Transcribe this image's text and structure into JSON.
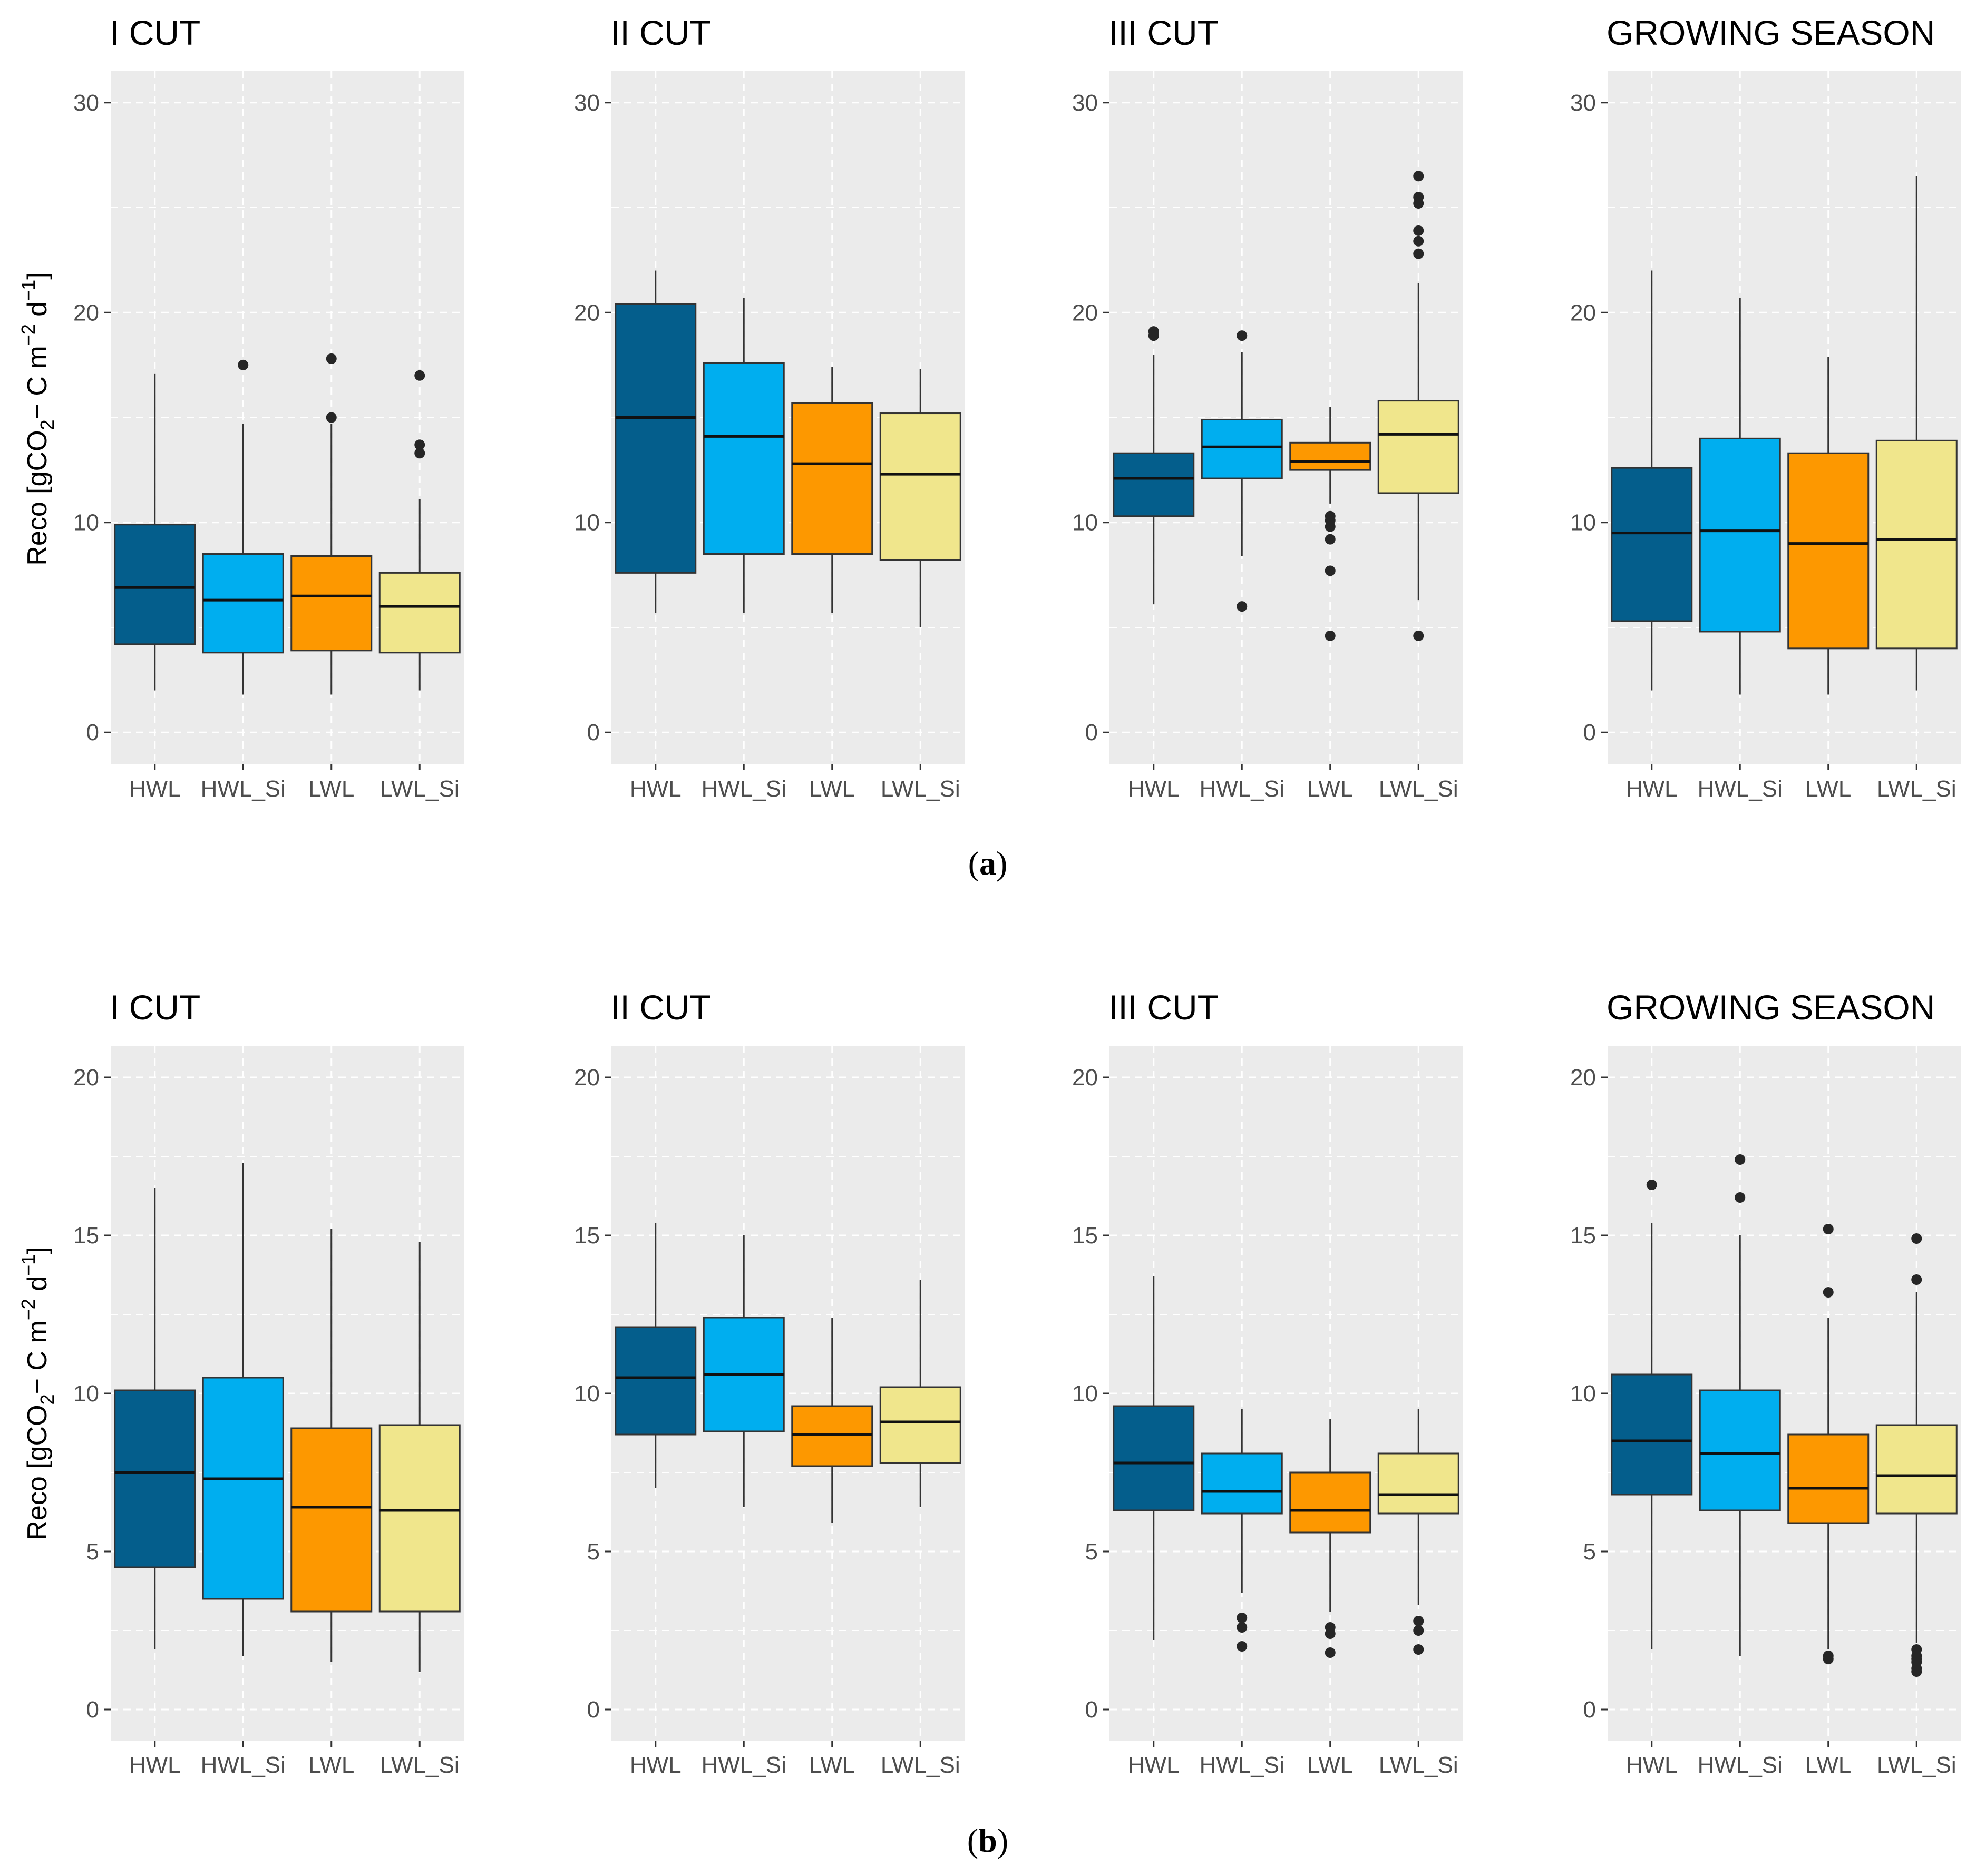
{
  "colors": {
    "HWL": "#045e8c",
    "HWL_Si": "#00aeef",
    "LWL": "#fd9800",
    "LWL_Si": "#f0e68c",
    "panel_bg": "#ebebeb",
    "grid": "#ffffff",
    "outlier": "#262626"
  },
  "y_axis_title": {
    "prefix": "Reco [gCO",
    "sub": "2",
    "mid1": "− C m",
    "sup1": "−2",
    "mid2": " d",
    "sup2": "−1",
    "suffix": "]"
  },
  "chart_data": [
    {
      "type": "boxplot",
      "subfigure": "(a)",
      "sub_label": {
        "open": "(",
        "letter": "a",
        "close": ")"
      },
      "ylim": [
        -1.5,
        31.5
      ],
      "yticks": [
        0,
        10,
        20,
        30
      ],
      "ygrid_minor": [
        5,
        15,
        25
      ],
      "categories": [
        "HWL",
        "HWL_Si",
        "LWL",
        "LWL_Si"
      ],
      "panels": [
        {
          "title": "I CUT",
          "boxes": [
            {
              "group": "HWL",
              "whisker_low": 2.0,
              "q1": 4.2,
              "median": 6.9,
              "q3": 9.9,
              "whisker_high": 17.1,
              "outliers": []
            },
            {
              "group": "HWL_Si",
              "whisker_low": 1.8,
              "q1": 3.8,
              "median": 6.3,
              "q3": 8.5,
              "whisker_high": 14.7,
              "outliers": [
                17.5
              ]
            },
            {
              "group": "LWL",
              "whisker_low": 1.8,
              "q1": 3.9,
              "median": 6.5,
              "q3": 8.4,
              "whisker_high": 14.7,
              "outliers": [
                15.0,
                17.8
              ]
            },
            {
              "group": "LWL_Si",
              "whisker_low": 2.0,
              "q1": 3.8,
              "median": 6.0,
              "q3": 7.6,
              "whisker_high": 11.1,
              "outliers": [
                13.3,
                13.7,
                17.0
              ]
            }
          ]
        },
        {
          "title": "II CUT",
          "boxes": [
            {
              "group": "HWL",
              "whisker_low": 5.7,
              "q1": 7.6,
              "median": 15.0,
              "q3": 20.4,
              "whisker_high": 22.0,
              "outliers": []
            },
            {
              "group": "HWL_Si",
              "whisker_low": 5.7,
              "q1": 8.5,
              "median": 14.1,
              "q3": 17.6,
              "whisker_high": 20.7,
              "outliers": []
            },
            {
              "group": "LWL",
              "whisker_low": 5.7,
              "q1": 8.5,
              "median": 12.8,
              "q3": 15.7,
              "whisker_high": 17.4,
              "outliers": []
            },
            {
              "group": "LWL_Si",
              "whisker_low": 5.0,
              "q1": 8.2,
              "median": 12.3,
              "q3": 15.2,
              "whisker_high": 17.3,
              "outliers": []
            }
          ]
        },
        {
          "title": "III CUT",
          "boxes": [
            {
              "group": "HWL",
              "whisker_low": 6.1,
              "q1": 10.3,
              "median": 12.1,
              "q3": 13.3,
              "whisker_high": 18.0,
              "outliers": [
                18.9,
                19.1
              ]
            },
            {
              "group": "HWL_Si",
              "whisker_low": 8.4,
              "q1": 12.1,
              "median": 13.6,
              "q3": 14.9,
              "whisker_high": 18.1,
              "outliers": [
                6.0,
                18.9
              ]
            },
            {
              "group": "LWL",
              "whisker_low": 10.9,
              "q1": 12.5,
              "median": 12.9,
              "q3": 13.8,
              "whisker_high": 15.5,
              "outliers": [
                4.6,
                7.7,
                9.2,
                9.8,
                10.1,
                10.3
              ]
            },
            {
              "group": "LWL_Si",
              "whisker_low": 6.3,
              "q1": 11.4,
              "median": 14.2,
              "q3": 15.8,
              "whisker_high": 21.4,
              "outliers": [
                4.6,
                22.8,
                23.4,
                23.9,
                25.2,
                25.5,
                26.5
              ]
            }
          ]
        },
        {
          "title": "GROWING SEASON",
          "boxes": [
            {
              "group": "HWL",
              "whisker_low": 2.0,
              "q1": 5.3,
              "median": 9.5,
              "q3": 12.6,
              "whisker_high": 22.0,
              "outliers": []
            },
            {
              "group": "HWL_Si",
              "whisker_low": 1.8,
              "q1": 4.8,
              "median": 9.6,
              "q3": 14.0,
              "whisker_high": 20.7,
              "outliers": []
            },
            {
              "group": "LWL",
              "whisker_low": 1.8,
              "q1": 4.0,
              "median": 9.0,
              "q3": 13.3,
              "whisker_high": 17.9,
              "outliers": []
            },
            {
              "group": "LWL_Si",
              "whisker_low": 2.0,
              "q1": 4.0,
              "median": 9.2,
              "q3": 13.9,
              "whisker_high": 26.5,
              "outliers": []
            }
          ]
        }
      ]
    },
    {
      "type": "boxplot",
      "subfigure": "(b)",
      "sub_label": {
        "open": "(",
        "letter": "b",
        "close": ")"
      },
      "ylim": [
        -1.0,
        21.0
      ],
      "yticks": [
        0,
        5,
        10,
        15,
        20
      ],
      "ygrid_minor": [
        2.5,
        7.5,
        12.5,
        17.5
      ],
      "categories": [
        "HWL",
        "HWL_Si",
        "LWL",
        "LWL_Si"
      ],
      "panels": [
        {
          "title": "I CUT",
          "boxes": [
            {
              "group": "HWL",
              "whisker_low": 1.9,
              "q1": 4.5,
              "median": 7.5,
              "q3": 10.1,
              "whisker_high": 16.5,
              "outliers": []
            },
            {
              "group": "HWL_Si",
              "whisker_low": 1.7,
              "q1": 3.5,
              "median": 7.3,
              "q3": 10.5,
              "whisker_high": 17.3,
              "outliers": []
            },
            {
              "group": "LWL",
              "whisker_low": 1.5,
              "q1": 3.1,
              "median": 6.4,
              "q3": 8.9,
              "whisker_high": 15.2,
              "outliers": []
            },
            {
              "group": "LWL_Si",
              "whisker_low": 1.2,
              "q1": 3.1,
              "median": 6.3,
              "q3": 9.0,
              "whisker_high": 14.8,
              "outliers": []
            }
          ]
        },
        {
          "title": "II CUT",
          "boxes": [
            {
              "group": "HWL",
              "whisker_low": 7.0,
              "q1": 8.7,
              "median": 10.5,
              "q3": 12.1,
              "whisker_high": 15.4,
              "outliers": []
            },
            {
              "group": "HWL_Si",
              "whisker_low": 6.4,
              "q1": 8.8,
              "median": 10.6,
              "q3": 12.4,
              "whisker_high": 15.0,
              "outliers": []
            },
            {
              "group": "LWL",
              "whisker_low": 5.9,
              "q1": 7.7,
              "median": 8.7,
              "q3": 9.6,
              "whisker_high": 12.4,
              "outliers": []
            },
            {
              "group": "LWL_Si",
              "whisker_low": 6.4,
              "q1": 7.8,
              "median": 9.1,
              "q3": 10.2,
              "whisker_high": 13.6,
              "outliers": []
            }
          ]
        },
        {
          "title": "III CUT",
          "boxes": [
            {
              "group": "HWL",
              "whisker_low": 2.2,
              "q1": 6.3,
              "median": 7.8,
              "q3": 9.6,
              "whisker_high": 13.7,
              "outliers": []
            },
            {
              "group": "HWL_Si",
              "whisker_low": 3.7,
              "q1": 6.2,
              "median": 6.9,
              "q3": 8.1,
              "whisker_high": 9.5,
              "outliers": [
                2.0,
                2.6,
                2.9
              ]
            },
            {
              "group": "LWL",
              "whisker_low": 3.1,
              "q1": 5.6,
              "median": 6.3,
              "q3": 7.5,
              "whisker_high": 9.2,
              "outliers": [
                1.8,
                2.4,
                2.6
              ]
            },
            {
              "group": "LWL_Si",
              "whisker_low": 3.3,
              "q1": 6.2,
              "median": 6.8,
              "q3": 8.1,
              "whisker_high": 9.5,
              "outliers": [
                1.9,
                2.5,
                2.8
              ]
            }
          ]
        },
        {
          "title": "GROWING SEASON",
          "boxes": [
            {
              "group": "HWL",
              "whisker_low": 1.9,
              "q1": 6.8,
              "median": 8.5,
              "q3": 10.6,
              "whisker_high": 15.4,
              "outliers": [
                16.6
              ]
            },
            {
              "group": "HWL_Si",
              "whisker_low": 1.7,
              "q1": 6.3,
              "median": 8.1,
              "q3": 10.1,
              "whisker_high": 15.0,
              "outliers": [
                16.2,
                17.4
              ]
            },
            {
              "group": "LWL",
              "whisker_low": 1.9,
              "q1": 5.9,
              "median": 7.0,
              "q3": 8.7,
              "whisker_high": 12.4,
              "outliers": [
                1.6,
                1.7,
                13.2,
                15.2
              ]
            },
            {
              "group": "LWL_Si",
              "whisker_low": 2.1,
              "q1": 6.2,
              "median": 7.4,
              "q3": 9.0,
              "whisker_high": 13.2,
              "outliers": [
                1.2,
                1.3,
                1.5,
                1.6,
                1.7,
                1.9,
                13.6,
                14.9
              ]
            }
          ]
        }
      ]
    }
  ]
}
